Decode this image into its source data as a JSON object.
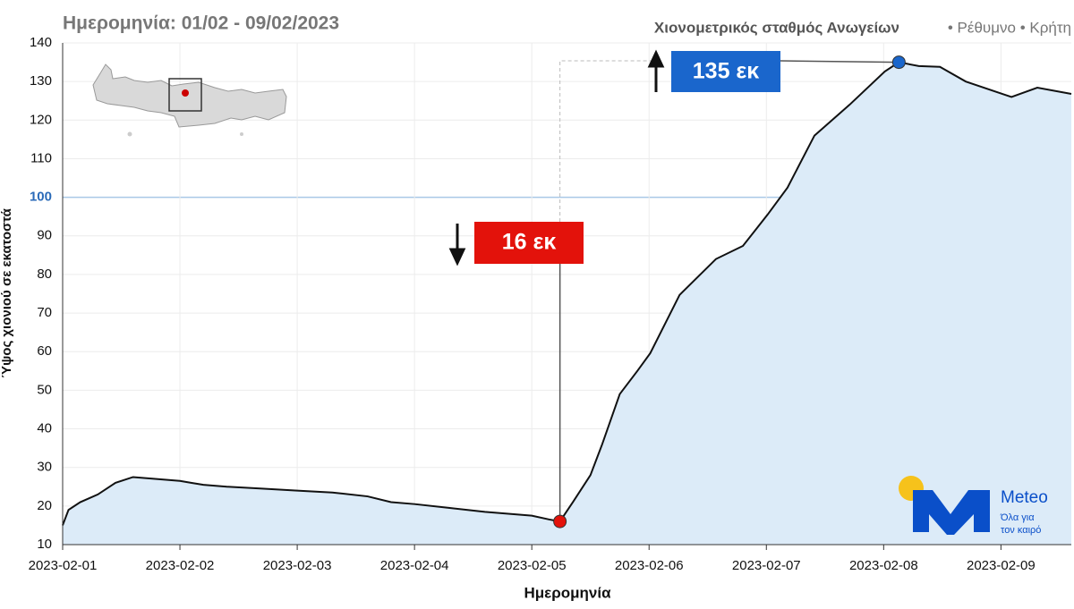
{
  "chart_data": {
    "type": "area",
    "subtitle": "Ημερομηνία: 01/02 - 09/02/2023",
    "station": "Χιονομετρικός σταθμός Ανωγείων",
    "place": "• Ρέθυμνο • Κρήτη",
    "x_label": "Ημερομηνία",
    "y_label": "Ύψος χιονιού σε εκατοστά",
    "x": [
      0,
      0.05,
      0.15,
      0.3,
      0.45,
      0.6,
      0.8,
      1.0,
      1.1,
      1.2,
      1.4,
      1.7,
      2.0,
      2.3,
      2.6,
      2.8,
      3.0,
      3.3,
      3.6,
      3.8,
      4.0,
      4.15,
      4.24,
      4.35,
      4.5,
      4.6,
      4.75,
      4.9,
      5.01,
      5.26,
      5.57,
      5.8,
      6.01,
      6.18,
      6.41,
      6.71,
      7.01,
      7.13,
      7.3,
      7.48,
      7.7,
      8.01,
      8.09,
      8.31,
      8.6
    ],
    "values": [
      15,
      19,
      21,
      23,
      26,
      27.5,
      27,
      26.5,
      26,
      25.5,
      25,
      24.5,
      24,
      23.5,
      22.5,
      21,
      20.5,
      19.5,
      18.5,
      18,
      17.5,
      16.5,
      16,
      21,
      28,
      36,
      49,
      55,
      59.6,
      74.7,
      84,
      87.4,
      95.5,
      102.5,
      116,
      124,
      132.6,
      135,
      134,
      133.8,
      130,
      126.8,
      126,
      128.4,
      126.8
    ],
    "color": "#111111",
    "fill": "#dcebf8",
    "xlim": [
      0,
      8.6
    ],
    "ylim": [
      10,
      140
    ],
    "xticks": [
      {
        "value": 0,
        "label": "2023-02-01"
      },
      {
        "value": 1,
        "label": "2023-02-02"
      },
      {
        "value": 2,
        "label": "2023-02-03"
      },
      {
        "value": 3,
        "label": "2023-02-04"
      },
      {
        "value": 4,
        "label": "2023-02-05"
      },
      {
        "value": 5,
        "label": "2023-02-06"
      },
      {
        "value": 6,
        "label": "2023-02-07"
      },
      {
        "value": 7,
        "label": "2023-02-08"
      },
      {
        "value": 8,
        "label": "2023-02-09"
      }
    ],
    "yticks": [
      10,
      20,
      30,
      40,
      50,
      60,
      70,
      80,
      90,
      100,
      110,
      120,
      130,
      140
    ],
    "highlight_y": 100,
    "highlight_color": "#2a6ab8",
    "grid": true,
    "annotations": [
      {
        "label": "16 εκ",
        "x": 4.24,
        "y": 16,
        "color": "#e3120b"
      },
      {
        "label": "135 εκ",
        "x": 7.13,
        "y": 135,
        "color": "#1a66cc"
      }
    ]
  },
  "logo": {
    "name": "Meteo",
    "tagline_1": "Όλα για",
    "tagline_2": "τον καιρό"
  }
}
